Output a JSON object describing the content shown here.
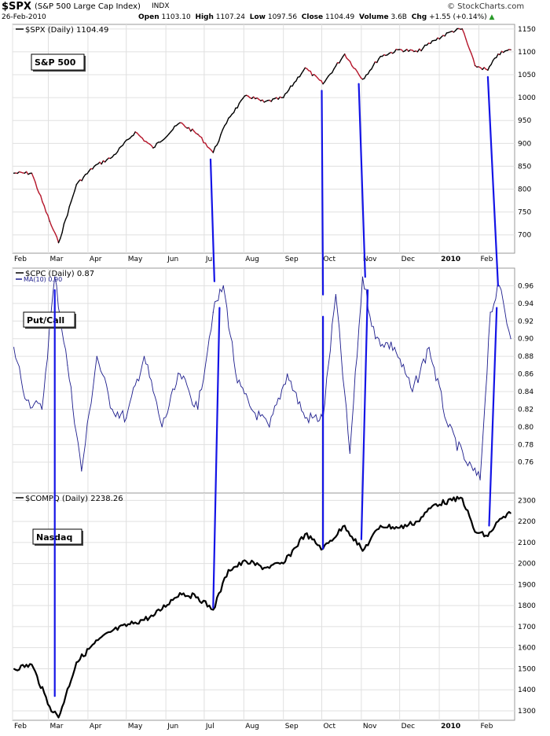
{
  "header": {
    "symbol": "$SPX",
    "name": "(S&P 500 Large Cap Index)",
    "exchange": "INDX",
    "date": "26-Feb-2010",
    "brand": "© StockCharts.com",
    "open_label": "Open",
    "open": "1103.10",
    "high_label": "High",
    "high": "1107.24",
    "low_label": "Low",
    "low": "1097.56",
    "close_label": "Close",
    "close": "1104.49",
    "volume_label": "Volume",
    "volume": "3.6B",
    "chg_label": "Chg",
    "chg": "+1.55 (+0.14%)"
  },
  "colors": {
    "up": "#000000",
    "down": "#b5162b",
    "cpc": "#1c1c8c",
    "annotation": "#1414e6",
    "grid": "#e0e0e0",
    "frame": "#999999"
  },
  "chart_data": [
    {
      "type": "line",
      "title": "$SPX (Daily) 1104.49",
      "label_box": "S&P 500",
      "x": [
        "2009-02-02",
        "2009-02-16",
        "2009-03-02",
        "2009-03-09",
        "2009-03-23",
        "2009-04-06",
        "2009-04-20",
        "2009-05-08",
        "2009-05-22",
        "2009-06-12",
        "2009-06-26",
        "2009-07-08",
        "2009-07-20",
        "2009-08-03",
        "2009-08-17",
        "2009-09-01",
        "2009-09-18",
        "2009-10-02",
        "2009-10-19",
        "2009-11-02",
        "2009-11-16",
        "2009-12-01",
        "2009-12-15",
        "2009-12-28",
        "2010-01-11",
        "2010-01-19",
        "2010-01-29",
        "2010-02-08",
        "2010-02-16",
        "2010-02-26"
      ],
      "values": [
        835,
        835,
        730,
        683,
        810,
        850,
        870,
        925,
        890,
        945,
        920,
        880,
        955,
        1005,
        990,
        1000,
        1065,
        1030,
        1095,
        1040,
        1090,
        1105,
        1100,
        1125,
        1145,
        1150,
        1070,
        1060,
        1095,
        1104.49
      ],
      "ylim": [
        660,
        1160
      ],
      "yticks": [
        700,
        750,
        800,
        850,
        900,
        950,
        1000,
        1050,
        1100,
        1150
      ],
      "xticks": [
        "Feb",
        "Mar",
        "Apr",
        "May",
        "Jun",
        "Jul",
        "Aug",
        "Sep",
        "Oct",
        "Nov",
        "Dec",
        "2010",
        "Feb"
      ],
      "grid": true
    },
    {
      "type": "line",
      "title": "$CPC (Daily) 0.87",
      "legend": "MA(10) 0.90",
      "label_box": "Put/Call",
      "x": [
        "2009-02-02",
        "2009-02-12",
        "2009-02-24",
        "2009-03-06",
        "2009-03-16",
        "2009-03-27",
        "2009-04-08",
        "2009-04-20",
        "2009-05-01",
        "2009-05-15",
        "2009-05-29",
        "2009-06-12",
        "2009-06-26",
        "2009-07-08",
        "2009-07-16",
        "2009-07-27",
        "2009-08-07",
        "2009-08-21",
        "2009-09-04",
        "2009-09-18",
        "2009-10-02",
        "2009-10-12",
        "2009-10-23",
        "2009-11-02",
        "2009-11-12",
        "2009-11-27",
        "2009-12-11",
        "2009-12-24",
        "2010-01-08",
        "2010-01-22",
        "2010-02-02",
        "2010-02-10",
        "2010-02-17",
        "2010-02-26"
      ],
      "values": [
        0.89,
        0.83,
        0.82,
        0.97,
        0.87,
        0.75,
        0.88,
        0.82,
        0.81,
        0.88,
        0.8,
        0.86,
        0.82,
        0.93,
        0.96,
        0.85,
        0.82,
        0.8,
        0.86,
        0.81,
        0.81,
        0.95,
        0.77,
        0.97,
        0.9,
        0.89,
        0.84,
        0.89,
        0.8,
        0.76,
        0.74,
        0.93,
        0.96,
        0.9
      ],
      "ylim": [
        0.725,
        0.98
      ],
      "yticks": [
        0.76,
        0.78,
        0.8,
        0.82,
        0.84,
        0.86,
        0.88,
        0.9,
        0.92,
        0.94,
        0.96
      ],
      "grid": true
    },
    {
      "type": "line",
      "title": "$COMPQ (Daily) 2238.26",
      "label_box": "Nasdaq",
      "x": [
        "2009-02-02",
        "2009-02-16",
        "2009-03-02",
        "2009-03-09",
        "2009-03-23",
        "2009-04-06",
        "2009-04-20",
        "2009-05-08",
        "2009-05-22",
        "2009-06-12",
        "2009-06-26",
        "2009-07-08",
        "2009-07-20",
        "2009-08-03",
        "2009-08-17",
        "2009-09-01",
        "2009-09-18",
        "2009-10-02",
        "2009-10-19",
        "2009-11-02",
        "2009-11-16",
        "2009-12-01",
        "2009-12-15",
        "2009-12-28",
        "2010-01-11",
        "2010-01-19",
        "2010-01-29",
        "2010-02-08",
        "2010-02-16",
        "2010-02-26"
      ],
      "values": [
        1500,
        1520,
        1320,
        1268,
        1530,
        1620,
        1680,
        1720,
        1750,
        1860,
        1840,
        1780,
        1970,
        2010,
        1980,
        2000,
        2140,
        2070,
        2180,
        2060,
        2180,
        2170,
        2200,
        2280,
        2300,
        2310,
        2150,
        2130,
        2200,
        2238.26
      ],
      "ylim": [
        1255,
        2335
      ],
      "yticks": [
        1300,
        1400,
        1500,
        1600,
        1700,
        1800,
        1900,
        2000,
        2100,
        2200,
        2300
      ],
      "xticks": [
        "Feb",
        "Mar",
        "Apr",
        "May",
        "Jun",
        "Jul",
        "Aug",
        "Sep",
        "Oct",
        "Nov",
        "Dec",
        "2010",
        "Feb"
      ],
      "grid": true
    }
  ],
  "annotations": [
    {
      "from": {
        "panel": 1,
        "date": "2009-03-06",
        "value": 0.955
      },
      "to": {
        "panel": 2,
        "date": "2009-03-06",
        "value": 1370
      }
    },
    {
      "from": {
        "panel": 0,
        "date": "2009-07-06",
        "value": 865
      },
      "to": {
        "panel": 1,
        "date": "2009-07-09",
        "value": 0.965
      }
    },
    {
      "from": {
        "panel": 1,
        "date": "2009-07-13",
        "value": 0.935
      },
      "to": {
        "panel": 2,
        "date": "2009-07-08",
        "value": 1790
      }
    },
    {
      "from": {
        "panel": 0,
        "date": "2009-10-01",
        "value": 1015
      },
      "to": {
        "panel": 1,
        "date": "2009-10-02",
        "value": 0.95
      }
    },
    {
      "from": {
        "panel": 1,
        "date": "2009-10-02",
        "value": 0.925
      },
      "to": {
        "panel": 2,
        "date": "2009-10-02",
        "value": 2070
      }
    },
    {
      "from": {
        "panel": 0,
        "date": "2009-10-30",
        "value": 1030
      },
      "to": {
        "panel": 1,
        "date": "2009-11-04",
        "value": 0.97
      }
    },
    {
      "from": {
        "panel": 1,
        "date": "2009-11-06",
        "value": 0.955
      },
      "to": {
        "panel": 2,
        "date": "2009-11-01",
        "value": 2115
      }
    },
    {
      "from": {
        "panel": 0,
        "date": "2010-02-08",
        "value": 1045
      },
      "to": {
        "panel": 1,
        "date": "2010-02-16",
        "value": 0.96
      }
    },
    {
      "from": {
        "panel": 1,
        "date": "2010-02-15",
        "value": 0.935
      },
      "to": {
        "panel": 2,
        "date": "2010-02-09",
        "value": 2180
      }
    }
  ]
}
